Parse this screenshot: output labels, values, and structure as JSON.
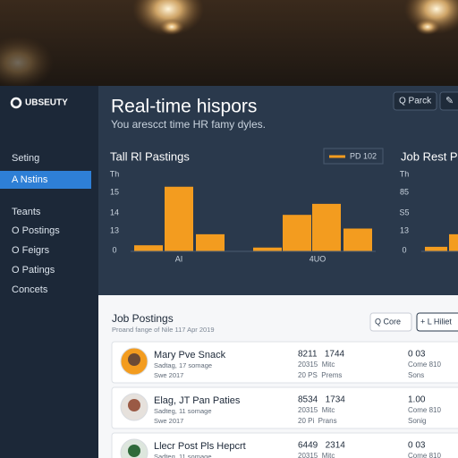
{
  "sidebar": {
    "logo": "UBSEUTY",
    "items": [
      "Seting",
      "A Nstins",
      "Teants",
      "O Postings",
      "O Feigrs",
      "O Patings",
      "Concets"
    ],
    "active": 1
  },
  "header": {
    "title": "Real-time hispors",
    "subtitle": "You arescct time HR famy dyles.",
    "button": "Q Parck"
  },
  "charts": [
    {
      "title": "Tall Rl Pastings",
      "legend": "PD 102",
      "color": "#f39c1f",
      "y_labels": [
        "Th",
        "15",
        "14",
        "13",
        "0"
      ],
      "x_labels": [
        "AI",
        "4UO"
      ],
      "ylim": [
        0,
        20
      ],
      "values": [
        1.6,
        17,
        4.5,
        1,
        9.6,
        12.5,
        6
      ]
    },
    {
      "title": "Job Rest Pa",
      "color": "#f39c1f",
      "y_labels": [
        "Th",
        "85",
        "S5",
        "13",
        "0"
      ],
      "ylim": [
        0,
        20
      ],
      "values": [
        1.2,
        4.5
      ]
    }
  ],
  "postings": {
    "title": "Job Postings",
    "subtitle": "Proand fange of Nile 117 Apr 2019",
    "buttons": [
      "Q Core",
      "+ L Hiliet"
    ],
    "rows": [
      {
        "name": "Mary Pve Snack",
        "lines": [
          "Sadtag, 17 somage",
          "Swe 2017"
        ],
        "cols": [
          [
            "8211   1744",
            "20315  Mitc",
            "20 PS  Prems"
          ],
          [
            "0 03",
            "Come 810",
            "Sons"
          ]
        ]
      },
      {
        "name": "Elag, JT Pan Paties",
        "lines": [
          "Sadteg, 11 somage",
          "Swe 2017"
        ],
        "cols": [
          [
            "8534   1734",
            "20315  Mitc",
            "20 Pi  Prans"
          ],
          [
            "1.00",
            "Come 810",
            "Sonig"
          ]
        ]
      },
      {
        "name": "Llecr Post Pls Hepcrt",
        "lines": [
          "Sadteg, 11 somage"
        ],
        "cols": [
          [
            "6449   2314",
            "20315  Mitc"
          ],
          [
            "0 03",
            "Come 810"
          ]
        ]
      }
    ]
  }
}
